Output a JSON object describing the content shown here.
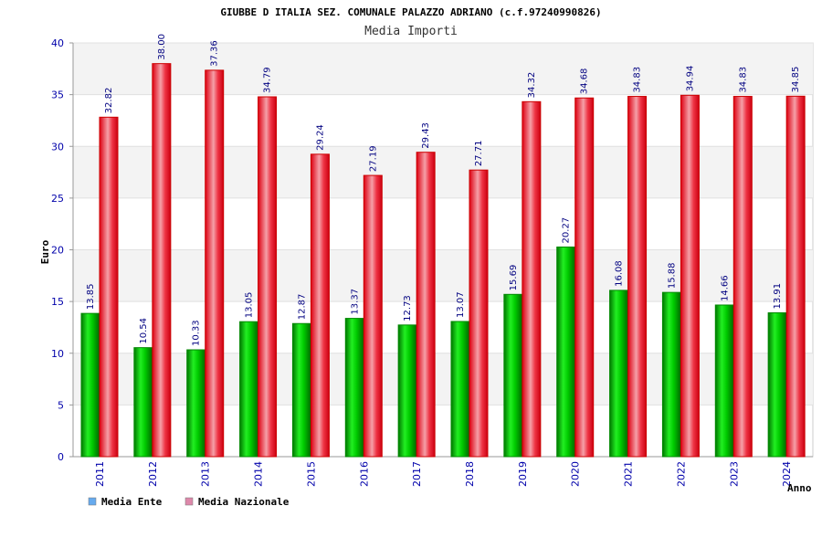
{
  "chart_data": {
    "type": "bar",
    "title": "GIUBBE D ITALIA SEZ. COMUNALE PALAZZO ADRIANO (c.f.97240990826)",
    "subtitle": "Media Importi",
    "xlabel": "Anno",
    "ylabel": "Euro",
    "ylim": [
      0,
      40
    ],
    "yticks": [
      0,
      5,
      10,
      15,
      20,
      25,
      30,
      35,
      40
    ],
    "grid": true,
    "legend": "bottom-left",
    "categories": [
      "2011",
      "2012",
      "2013",
      "2014",
      "2015",
      "2016",
      "2017",
      "2018",
      "2019",
      "2020",
      "2021",
      "2022",
      "2023",
      "2024"
    ],
    "series": [
      {
        "name": "Media Ente",
        "color": "#00cc00",
        "legend_color": "#66aaee",
        "values": [
          13.85,
          10.54,
          10.33,
          13.05,
          12.87,
          13.37,
          12.73,
          13.07,
          15.69,
          20.27,
          16.08,
          15.88,
          14.66,
          13.91
        ],
        "labels": [
          "13.85",
          "10.54",
          "10.33",
          "13.05",
          "12.87",
          "13.37",
          "12.73",
          "13.07",
          "15.69",
          "20.27",
          "16.08",
          "15.88",
          "14.66",
          "13.91"
        ]
      },
      {
        "name": "Media Nazionale",
        "color": "#ee1122",
        "legend_color": "#dd88aa",
        "values": [
          32.82,
          38.0,
          37.36,
          34.79,
          29.24,
          27.19,
          29.43,
          27.71,
          34.32,
          34.68,
          34.83,
          34.94,
          34.83,
          34.85
        ],
        "labels": [
          "32.82",
          "38.00",
          "37.36",
          "34.79",
          "29.24",
          "27.19",
          "29.43",
          "27.71",
          "34.32",
          "34.68",
          "34.83",
          "34.94",
          "34.83",
          "34.85"
        ]
      }
    ]
  }
}
